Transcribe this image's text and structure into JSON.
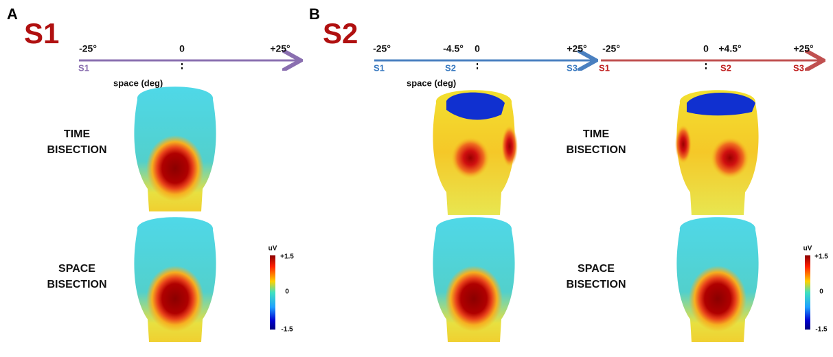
{
  "panels": [
    {
      "letter": "A",
      "title": "S1",
      "axes": [
        {
          "ticks": [
            "-25°",
            "0",
            "+25°"
          ],
          "stimuli": [
            "S1"
          ],
          "label": "space (deg)"
        }
      ],
      "rows": [
        [
          "TIME",
          "BISECTION"
        ],
        [
          "SPACE",
          "BISECTION"
        ]
      ],
      "colorbar": {
        "unit": "uV",
        "labels": [
          "+1.5",
          "0",
          "-1.5"
        ]
      }
    },
    {
      "letter": "B",
      "title": "S2",
      "axes": [
        {
          "ticks": [
            "-25°",
            "-4.5°",
            "0",
            "+25°"
          ],
          "stimuli": [
            "S1",
            "S2",
            "S3"
          ],
          "label": "space (deg)"
        },
        {
          "ticks": [
            "-25°",
            "0",
            "+4.5°",
            "+25°"
          ],
          "stimuli": [
            "S1",
            "S2",
            "S3"
          ]
        }
      ],
      "rows": [
        [
          "TIME",
          "BISECTION"
        ],
        [
          "SPACE",
          "BISECTION"
        ]
      ],
      "colorbar": {
        "unit": "uV",
        "labels": [
          "+1.5",
          "0",
          "-1.5"
        ]
      }
    }
  ]
}
